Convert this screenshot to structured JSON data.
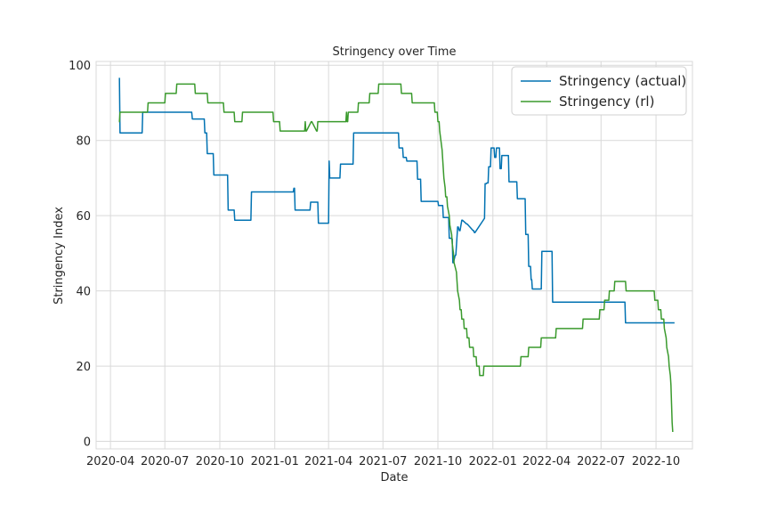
{
  "chart_data": {
    "type": "line",
    "title": "Stringency over Time",
    "xlabel": "Date",
    "ylabel": "Stringency Index",
    "xlim": [
      "2020-03-08",
      "2022-12-01"
    ],
    "ylim": [
      -2,
      101
    ],
    "x_ticks": [
      "2020-04",
      "2020-07",
      "2020-10",
      "2021-01",
      "2021-04",
      "2021-07",
      "2021-10",
      "2022-01",
      "2022-04",
      "2022-07",
      "2022-10"
    ],
    "x_tick_dates": [
      "2020-04-01",
      "2020-07-01",
      "2020-10-01",
      "2021-01-01",
      "2021-04-01",
      "2021-07-01",
      "2021-10-01",
      "2022-01-01",
      "2022-04-01",
      "2022-07-01",
      "2022-10-01"
    ],
    "y_ticks": [
      "0",
      "20",
      "40",
      "60",
      "80",
      "100"
    ],
    "y_tick_values": [
      0,
      20,
      40,
      60,
      80,
      100
    ],
    "grid": true,
    "legend_position": "top-right",
    "series": [
      {
        "name": "Stringency (actual)",
        "color": "#0072b2",
        "x": [
          "2020-04-15",
          "2020-04-16",
          "2020-04-17",
          "2020-05-24",
          "2020-05-25",
          "2020-08-15",
          "2020-08-16",
          "2020-09-05",
          "2020-09-06",
          "2020-09-09",
          "2020-09-10",
          "2020-09-20",
          "2020-09-21",
          "2020-10-14",
          "2020-10-15",
          "2020-10-25",
          "2020-10-26",
          "2020-11-22",
          "2020-11-23",
          "2021-02-01",
          "2021-02-02",
          "2021-02-03",
          "2021-02-04",
          "2021-03-01",
          "2021-03-02",
          "2021-03-14",
          "2021-03-15",
          "2021-04-01",
          "2021-04-02",
          "2021-04-03",
          "2021-04-20",
          "2021-04-21",
          "2021-05-12",
          "2021-05-13",
          "2021-07-27",
          "2021-07-28",
          "2021-08-03",
          "2021-08-04",
          "2021-08-09",
          "2021-08-10",
          "2021-08-27",
          "2021-08-28",
          "2021-09-02",
          "2021-09-03",
          "2021-10-01",
          "2021-10-02",
          "2021-10-09",
          "2021-10-10",
          "2021-10-19",
          "2021-10-20",
          "2021-10-23",
          "2021-10-24",
          "2021-10-25",
          "2021-10-26",
          "2021-10-27",
          "2021-10-30",
          "2021-10-31",
          "2021-11-03",
          "2021-11-04",
          "2021-11-06",
          "2021-11-07",
          "2021-11-10",
          "2021-11-11",
          "2021-11-18",
          "2021-11-19",
          "2021-11-29",
          "2021-11-30",
          "2021-12-01",
          "2021-12-02",
          "2021-12-18",
          "2021-12-19",
          "2021-12-21",
          "2021-12-22",
          "2021-12-24",
          "2021-12-25",
          "2021-12-28",
          "2021-12-29",
          "2022-01-03",
          "2022-01-04",
          "2022-01-06",
          "2022-01-07",
          "2022-01-12",
          "2022-01-13",
          "2022-01-15",
          "2022-01-16",
          "2022-01-27",
          "2022-01-28",
          "2022-02-10",
          "2022-02-11",
          "2022-02-24",
          "2022-02-25",
          "2022-03-01",
          "2022-03-02",
          "2022-03-05",
          "2022-03-06",
          "2022-03-07",
          "2022-03-08",
          "2022-03-23",
          "2022-03-24",
          "2022-04-10",
          "2022-04-11",
          "2022-08-10",
          "2022-08-11",
          "2022-11-01"
        ],
        "y": [
          96.5,
          96.5,
          82,
          82,
          87.5,
          87.5,
          85.7,
          85.7,
          82,
          82,
          76.5,
          76.5,
          70.8,
          70.8,
          61.5,
          61.5,
          58.8,
          58.8,
          66.3,
          66.3,
          67.3,
          67.3,
          61.5,
          61.5,
          63.6,
          63.6,
          58,
          58,
          74.5,
          70,
          70,
          73.7,
          73.7,
          82,
          82,
          78,
          78,
          75.5,
          75.5,
          74.5,
          74.5,
          69.7,
          69.7,
          63.8,
          63.8,
          62.7,
          62.7,
          59.5,
          59.5,
          54,
          54,
          53.8,
          53.8,
          47.5,
          47.5,
          49.5,
          49.5,
          57,
          57,
          56,
          56,
          58.8,
          58.8,
          57.8,
          57.8,
          56,
          56,
          55.5,
          55.5,
          59.3,
          68.5,
          68.5,
          68.7,
          68.7,
          73,
          73,
          78,
          78,
          75.5,
          75.5,
          78,
          78,
          72.5,
          72.5,
          76,
          76,
          69,
          69,
          64.5,
          64.5,
          55,
          55,
          46.5,
          46.5,
          43,
          43,
          40.5,
          40.5,
          50.5,
          50.5,
          37,
          37,
          31.5,
          31.5
        ]
      },
      {
        "name": "Stringency (rl)",
        "color": "#3a9a2d",
        "x": [
          "2020-04-15",
          "2020-04-16",
          "2020-04-17",
          "2020-04-18",
          "2020-05-14",
          "2020-05-15",
          "2020-05-27",
          "2020-05-28",
          "2020-06-02",
          "2020-06-03",
          "2020-07-01",
          "2020-07-02",
          "2020-07-20",
          "2020-07-21",
          "2020-08-20",
          "2020-08-21",
          "2020-09-10",
          "2020-09-11",
          "2020-10-07",
          "2020-10-08",
          "2020-10-25",
          "2020-10-26",
          "2020-11-07",
          "2020-11-08",
          "2020-12-29",
          "2020-12-30",
          "2021-01-09",
          "2021-01-10",
          "2021-02-20",
          "2021-02-21",
          "2021-02-22",
          "2021-02-23",
          "2021-03-03",
          "2021-03-04",
          "2021-03-12",
          "2021-03-13",
          "2021-03-14",
          "2021-03-15",
          "2021-04-30",
          "2021-05-01",
          "2021-05-02",
          "2021-05-03",
          "2021-05-04",
          "2021-05-05",
          "2021-05-20",
          "2021-05-21",
          "2021-06-08",
          "2021-06-09",
          "2021-06-23",
          "2021-06-24",
          "2021-06-30",
          "2021-07-01",
          "2021-07-31",
          "2021-08-01",
          "2021-08-18",
          "2021-08-19",
          "2021-09-25",
          "2021-09-26",
          "2021-09-30",
          "2021-10-01",
          "2021-10-03",
          "2021-10-04",
          "2021-10-06",
          "2021-10-08",
          "2021-10-09",
          "2021-10-10",
          "2021-10-11",
          "2021-10-13",
          "2021-10-14",
          "2021-10-16",
          "2021-10-17",
          "2021-10-20",
          "2021-10-21",
          "2021-10-24",
          "2021-10-25",
          "2021-10-27",
          "2021-10-28",
          "2021-11-01",
          "2021-11-02",
          "2021-11-03",
          "2021-11-06",
          "2021-11-07",
          "2021-11-09",
          "2021-11-10",
          "2021-11-13",
          "2021-11-14",
          "2021-11-18",
          "2021-11-19",
          "2021-11-22",
          "2021-11-23",
          "2021-11-29",
          "2021-11-30",
          "2021-12-04",
          "2021-12-05",
          "2021-12-09",
          "2021-12-10",
          "2021-12-16",
          "2021-12-17",
          "2022-02-16",
          "2022-02-17",
          "2022-03-01",
          "2022-03-02",
          "2022-03-22",
          "2022-03-23",
          "2022-04-16",
          "2022-04-17",
          "2022-05-31",
          "2022-06-01",
          "2022-06-28",
          "2022-06-29",
          "2022-07-06",
          "2022-07-07",
          "2022-07-14",
          "2022-07-15",
          "2022-07-23",
          "2022-07-24",
          "2022-08-11",
          "2022-08-12",
          "2022-09-28",
          "2022-09-29",
          "2022-10-04",
          "2022-10-05",
          "2022-10-09",
          "2022-10-10",
          "2022-10-14",
          "2022-10-15",
          "2022-10-18",
          "2022-10-19",
          "2022-10-22",
          "2022-10-23",
          "2022-10-25",
          "2022-10-26",
          "2022-10-27",
          "2022-10-28",
          "2022-10-29"
        ],
        "y": [
          85,
          85,
          87.5,
          87.5,
          87.5,
          87.5,
          87.5,
          87.5,
          87.5,
          90,
          90,
          92.5,
          92.5,
          95,
          95,
          92.5,
          92.5,
          90,
          90,
          87.5,
          87.5,
          85,
          85,
          87.5,
          87.5,
          85,
          85,
          82.5,
          82.5,
          85,
          82.5,
          82.5,
          85,
          85,
          82.5,
          82.5,
          85,
          85,
          85,
          87.5,
          85,
          85,
          87.5,
          87.5,
          87.5,
          90,
          90,
          92.5,
          92.5,
          95,
          95,
          95,
          95,
          92.5,
          92.5,
          90,
          90,
          87.5,
          87.5,
          85,
          85,
          82.5,
          80,
          77.5,
          75,
          72.5,
          70,
          67.5,
          65,
          65,
          62.5,
          60,
          57.5,
          55,
          52.5,
          50,
          47.5,
          45,
          42.5,
          40,
          37.5,
          35,
          35,
          32.5,
          32.5,
          30,
          30,
          27.5,
          27.5,
          25,
          25,
          22.5,
          22.5,
          20,
          20,
          17.5,
          17.5,
          20,
          20,
          22.5,
          22.5,
          25,
          25,
          27.5,
          27.5,
          30,
          30,
          32.5,
          32.5,
          35,
          35,
          37.5,
          37.5,
          40,
          40,
          42.5,
          42.5,
          40,
          40,
          37.5,
          37.5,
          35,
          35,
          32.5,
          32.5,
          30,
          27.5,
          25,
          22.5,
          20,
          17.5,
          15,
          10,
          5,
          2.5
        ]
      }
    ]
  }
}
